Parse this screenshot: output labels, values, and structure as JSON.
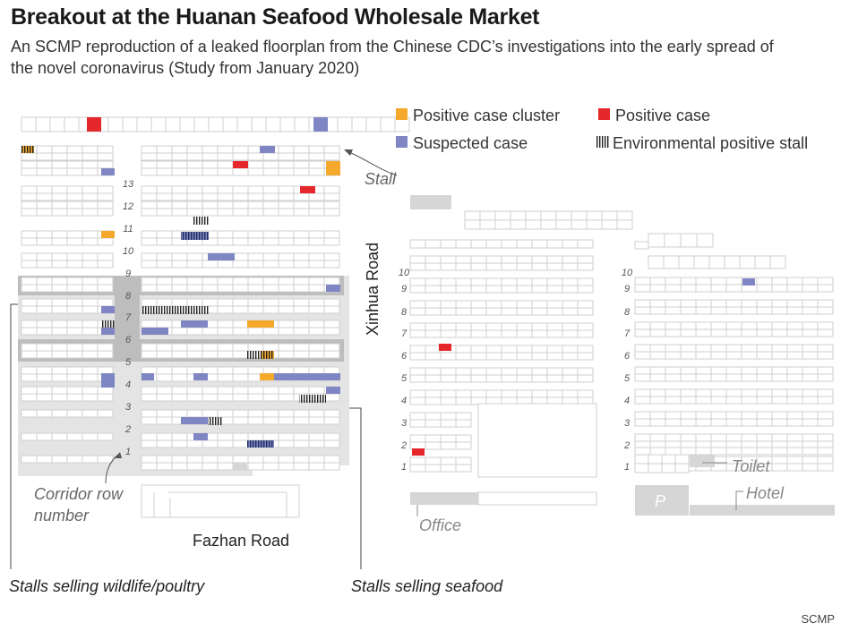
{
  "header": {
    "title": "Breakout at the Huanan Seafood Wholesale Market",
    "subtitle": "An SCMP reproduction of a leaked floorplan from the Chinese CDC’s investigations into the early spread of the novel coronavirus (Study from January 2020)"
  },
  "legend": {
    "items": [
      {
        "label": "Positive case cluster",
        "color": "#F4A92C"
      },
      {
        "label": "Positive case",
        "color": "#E5262A"
      },
      {
        "label": "Suspected case",
        "color": "#7F86C3"
      },
      {
        "label": "Environmental positive stall",
        "color": "#222222"
      }
    ]
  },
  "colors": {
    "stall_outline": "#cfcfcf",
    "zone_fill": "#e4e4e4",
    "highlight_row": "#bdbdbd",
    "positive_cluster": "#F4A92C",
    "positive": "#E5262A",
    "suspected": "#7F86C3"
  },
  "labels": {
    "stall": "Stall",
    "corridor": "Corridor row number",
    "xinhua_road": "Xinhua Road",
    "fazhan_road": "Fazhan Road",
    "wildlife": "Stalls selling wildlife/poultry",
    "seafood": "Stalls selling seafood",
    "toilet": "Toilet",
    "hotel": "Hotel",
    "office": "Office",
    "parking": "P"
  },
  "corridors": {
    "west": [
      "13",
      "12",
      "11",
      "10",
      "9",
      "8",
      "7",
      "6",
      "5",
      "4",
      "3",
      "2",
      "1"
    ],
    "east_a": [
      "10",
      "9",
      "8",
      "7",
      "6",
      "5",
      "4",
      "3",
      "2",
      "1"
    ],
    "east_b": [
      "10",
      "9",
      "8",
      "7",
      "6",
      "5",
      "4",
      "3",
      "2",
      "1"
    ]
  },
  "footer": {
    "source": "SCMP"
  }
}
